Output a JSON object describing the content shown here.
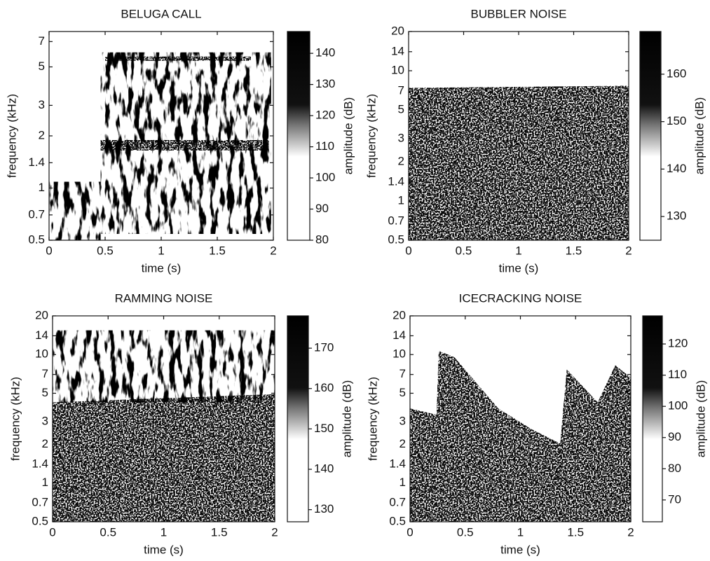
{
  "chart_data": [
    {
      "type": "spectrogram",
      "title": "BELUGA CALL",
      "xlabel": "time (s)",
      "ylabel": "frequency (kHz)",
      "colorbar_label": "amplitude (dB)",
      "xlim": [
        0,
        2
      ],
      "xticks": [
        0,
        0.5,
        1,
        1.5,
        2
      ],
      "ylim": [
        0.5,
        8
      ],
      "yticks": [
        0.5,
        0.7,
        1,
        1.4,
        2,
        3,
        5,
        7
      ],
      "ylog": true,
      "clim": [
        80,
        147
      ],
      "cticks": [
        80,
        90,
        100,
        110,
        120,
        130,
        140
      ]
    },
    {
      "type": "spectrogram",
      "title": "BUBBLER NOISE",
      "xlabel": "time (s)",
      "ylabel": "frequency (kHz)",
      "colorbar_label": "amplitude (dB)",
      "xlim": [
        0,
        2
      ],
      "xticks": [
        0,
        0.5,
        1,
        1.5,
        2
      ],
      "ylim": [
        0.5,
        20
      ],
      "yticks": [
        0.5,
        0.7,
        1,
        1.4,
        2,
        3,
        5,
        7,
        10,
        14,
        20
      ],
      "ylog": true,
      "clim": [
        125,
        169
      ],
      "cticks": [
        130,
        140,
        150,
        160
      ]
    },
    {
      "type": "spectrogram",
      "title": "RAMMING NOISE",
      "xlabel": "time (s)",
      "ylabel": "frequency (kHz)",
      "colorbar_label": "amplitude (dB)",
      "xlim": [
        0,
        2
      ],
      "xticks": [
        0,
        0.5,
        1,
        1.5,
        2
      ],
      "ylim": [
        0.5,
        20
      ],
      "yticks": [
        0.5,
        0.7,
        1,
        1.4,
        2,
        3,
        5,
        7,
        10,
        14,
        20
      ],
      "ylog": true,
      "clim": [
        127,
        178
      ],
      "cticks": [
        130,
        140,
        150,
        160,
        170
      ]
    },
    {
      "type": "spectrogram",
      "title": "ICECRACKING NOISE",
      "xlabel": "time (s)",
      "ylabel": "frequency (kHz)",
      "colorbar_label": "amplitude (dB)",
      "xlim": [
        0,
        2
      ],
      "xticks": [
        0,
        0.5,
        1,
        1.5,
        2
      ],
      "ylim": [
        0.5,
        20
      ],
      "yticks": [
        0.5,
        0.7,
        1,
        1.4,
        2,
        3,
        5,
        7,
        10,
        14,
        20
      ],
      "ylog": true,
      "clim": [
        63,
        129
      ],
      "cticks": [
        70,
        80,
        90,
        100,
        110,
        120
      ]
    }
  ]
}
